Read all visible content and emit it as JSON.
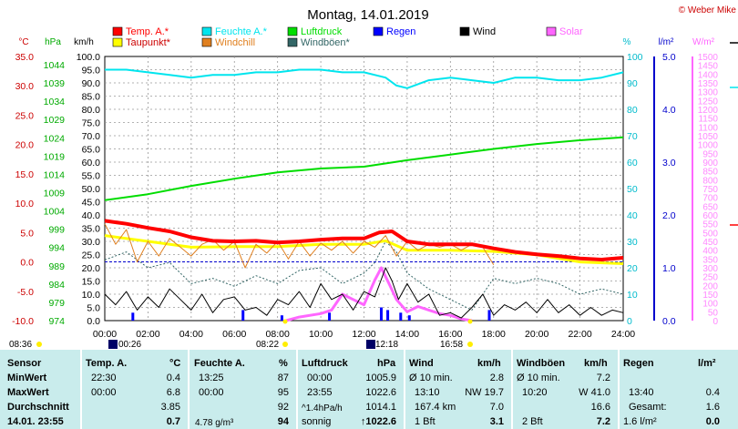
{
  "header": {
    "title": "Montag, 14.01.2019",
    "copyright": "© Weber Mike"
  },
  "colors": {
    "temp": "#ff0000",
    "humidity": "#00e5ee",
    "pressure": "#00dd00",
    "dewpoint": "#ffff00",
    "windchill": "#e08020",
    "gust": "#336666",
    "rain": "#0000ff",
    "wind": "#000000",
    "solar": "#ff66ff",
    "grid": "#000000",
    "table_bg": "#c9ecec"
  },
  "legend": [
    {
      "label": "Temp. A.*",
      "color": "#ff0000"
    },
    {
      "label": "Feuchte A.*",
      "color": "#00e5ee"
    },
    {
      "label": "Luftdruck",
      "color": "#00dd00"
    },
    {
      "label": "Regen",
      "color": "#0000ff"
    },
    {
      "label": "Wind",
      "color": "#000000"
    },
    {
      "label": "Solar",
      "color": "#ff66ff"
    },
    {
      "label": "Taupunkt*",
      "color": "#ffff00"
    },
    {
      "label": "Windchill",
      "color": "#e08020"
    },
    {
      "label": "Windböen*",
      "color": "#336666"
    }
  ],
  "axes": {
    "temp_unit": "°C",
    "hpa_unit": "hPa",
    "kmh_unit": "km/h",
    "pct_unit": "%",
    "rain_unit": "l/m²",
    "solar_unit": "W/m²",
    "temp_ticks": [
      "35.0",
      "30.0",
      "25.0",
      "20.0",
      "15.0",
      "10.0",
      "5.0",
      "0.0",
      "-5.0",
      "-10.0"
    ],
    "hpa_ticks": [
      "1044",
      "1039",
      "1034",
      "1029",
      "1024",
      "1019",
      "1014",
      "1009",
      "1004",
      "999",
      "994",
      "989",
      "984",
      "979",
      "974"
    ],
    "kmh_ticks": [
      "100.0",
      "95.0",
      "90.0",
      "85.0",
      "80.0",
      "75.0",
      "70.0",
      "65.0",
      "60.0",
      "55.0",
      "50.0",
      "45.0",
      "40.0",
      "35.0",
      "30.0",
      "25.0",
      "20.0",
      "15.0",
      "10.0",
      "5.0",
      "0.0"
    ],
    "pct_ticks": [
      "100",
      "90",
      "80",
      "70",
      "60",
      "50",
      "40",
      "30",
      "20",
      "10",
      "0"
    ],
    "rain_ticks": [
      "5.0",
      "4.0",
      "3.0",
      "2.0",
      "1.0",
      "0.0"
    ],
    "solar_ticks": [
      "1500",
      "1450",
      "1400",
      "1350",
      "1300",
      "1250",
      "1200",
      "1150",
      "1100",
      "1050",
      "1000",
      "950",
      "900",
      "850",
      "800",
      "750",
      "700",
      "650",
      "600",
      "550",
      "500",
      "450",
      "400",
      "350",
      "300",
      "250",
      "200",
      "150",
      "100",
      "50",
      "0"
    ],
    "x_ticks": [
      "00:00",
      "02:00",
      "04:00",
      "06:00",
      "08:00",
      "10:00",
      "12:00",
      "14:00",
      "16:00",
      "18:00",
      "20:00",
      "22:00",
      "24:00"
    ]
  },
  "sun": {
    "sunrise": "08:22",
    "sunset": "16:58",
    "dawn": "08:36",
    "moonrise": "00:26",
    "moonset": "12:18"
  },
  "chart_data": {
    "type": "line",
    "x_unit": "hours",
    "series": [
      {
        "name": "Temp. A.*",
        "axis": "temp",
        "x": [
          0,
          1,
          2,
          3,
          4,
          5,
          6,
          7,
          8,
          9,
          10,
          11,
          12,
          12.7,
          13.3,
          14,
          15,
          16,
          17,
          18,
          19,
          20,
          21,
          22,
          23,
          24
        ],
        "values": [
          7.0,
          6.5,
          5.8,
          5.2,
          4.2,
          3.6,
          3.5,
          3.6,
          3.3,
          3.5,
          3.8,
          4.0,
          4.0,
          5.0,
          5.2,
          3.5,
          3.0,
          3.0,
          3.0,
          2.3,
          1.7,
          1.3,
          1.0,
          0.6,
          0.4,
          0.7
        ]
      },
      {
        "name": "Feuchte A.*",
        "axis": "pct",
        "x": [
          0,
          1,
          2,
          3,
          4,
          5,
          6,
          7,
          8,
          9,
          10,
          11,
          12,
          13,
          13.5,
          14,
          15,
          16,
          17,
          18,
          19,
          20,
          21,
          22,
          23,
          24
        ],
        "values": [
          95,
          95,
          94,
          93,
          92,
          93,
          93,
          94,
          94,
          95,
          95,
          94,
          94,
          92,
          89,
          88,
          91,
          92,
          91,
          90,
          92,
          92,
          91,
          91,
          92,
          94
        ]
      },
      {
        "name": "Luftdruck",
        "axis": "hpa",
        "x": [
          0,
          2,
          4,
          6,
          8,
          10,
          12,
          14,
          16,
          18,
          20,
          22,
          24
        ],
        "values": [
          1005.9,
          1007.5,
          1009.7,
          1011.6,
          1013.3,
          1014.3,
          1014.8,
          1016.5,
          1018.0,
          1019.5,
          1020.8,
          1021.8,
          1022.6
        ]
      },
      {
        "name": "Taupunkt*",
        "axis": "temp",
        "x": [
          0,
          2,
          4,
          6,
          8,
          10,
          12,
          13,
          14,
          16,
          18,
          20,
          22,
          24
        ],
        "values": [
          4.5,
          3.5,
          2.5,
          2.6,
          2.6,
          3.0,
          3.0,
          3.6,
          2.0,
          2.0,
          1.8,
          1.2,
          0.0,
          -0.3
        ]
      },
      {
        "name": "Windchill",
        "axis": "temp",
        "x": [
          0,
          0.5,
          1,
          1.5,
          2,
          2.5,
          3,
          3.5,
          4,
          4.5,
          5,
          5.5,
          6,
          6.5,
          7,
          7.5,
          8,
          8.5,
          9,
          9.5,
          10,
          10.5,
          11,
          11.5,
          12,
          12.5,
          13,
          13.5,
          14,
          14.5,
          15,
          15.5,
          16,
          16.5,
          17,
          17.5,
          18
        ],
        "values": [
          6.5,
          3.0,
          5.5,
          0.0,
          3.5,
          1.0,
          4.0,
          2.5,
          1.0,
          3.0,
          3.8,
          2.0,
          3.5,
          -1.0,
          3.0,
          1.5,
          3.5,
          0.5,
          3.5,
          1.0,
          3.2,
          2.0,
          3.5,
          1.5,
          3.5,
          2.5,
          4.5,
          1.0,
          3.5,
          2.0,
          3.0,
          2.5,
          3.0,
          2.0,
          3.0,
          2.5,
          -0.5
        ]
      },
      {
        "name": "Windböen*",
        "axis": "kmh",
        "x": [
          0,
          1,
          2,
          3,
          4,
          5,
          6,
          7,
          8,
          9,
          10,
          11,
          12,
          12.5,
          13,
          13.5,
          14,
          15,
          16,
          17,
          18,
          19,
          20,
          21,
          22,
          23,
          24
        ],
        "values": [
          23,
          26,
          20,
          22,
          14,
          16,
          13,
          17,
          14,
          19,
          20,
          14,
          18,
          22,
          30,
          26,
          18,
          12,
          8,
          4,
          16,
          14,
          16,
          14,
          10,
          12,
          10
        ]
      },
      {
        "name": "Wind",
        "axis": "kmh",
        "x": [
          0,
          0.5,
          1,
          1.5,
          2,
          2.5,
          3,
          3.5,
          4,
          4.5,
          5,
          5.5,
          6,
          6.5,
          7,
          7.5,
          8,
          8.5,
          9,
          9.5,
          10,
          10.5,
          11,
          11.5,
          12,
          12.5,
          13,
          13.3,
          13.6,
          14,
          14.5,
          15,
          15.5,
          16,
          16.5,
          17,
          17.5,
          18,
          18.5,
          19,
          19.5,
          20,
          20.5,
          21,
          21.5,
          22,
          22.5,
          23,
          23.5,
          24
        ],
        "values": [
          10,
          6,
          11,
          4,
          9,
          5,
          12,
          8,
          4,
          10,
          3,
          8,
          9,
          4,
          5,
          2,
          8,
          6,
          11,
          5,
          14,
          8,
          10,
          4,
          11,
          9,
          20,
          15,
          8,
          14,
          7,
          10,
          2,
          3,
          1,
          5,
          10,
          2,
          6,
          4,
          7,
          3,
          8,
          3,
          6,
          2,
          5,
          2,
          4,
          3
        ]
      },
      {
        "name": "Solar",
        "axis": "solar",
        "x": [
          8.4,
          9,
          10,
          10.5,
          11,
          11.5,
          12,
          12.5,
          12.8,
          13,
          13.2,
          13.5,
          14,
          14.5,
          15,
          15.5,
          16,
          16.5,
          17
        ],
        "values": [
          0,
          20,
          40,
          60,
          150,
          120,
          90,
          230,
          300,
          250,
          200,
          120,
          50,
          80,
          60,
          40,
          30,
          10,
          0
        ]
      },
      {
        "name": "Regen",
        "axis": "rain",
        "type": "bar",
        "x": [
          1.3,
          6.4,
          8.2,
          10.4,
          12.8,
          13.1,
          13.7,
          14.1,
          17.8
        ],
        "values": [
          0.15,
          0.2,
          0.1,
          0.15,
          0.25,
          0.2,
          0.15,
          0.1,
          0.2
        ]
      }
    ],
    "ylim": {
      "temp": [
        -10,
        35
      ],
      "hpa": [
        974,
        1044
      ],
      "kmh": [
        0,
        100
      ],
      "pct": [
        0,
        100
      ],
      "rain": [
        0,
        5
      ],
      "solar": [
        0,
        1500
      ]
    }
  },
  "table": {
    "sensor": {
      "header": "Sensor",
      "min": "MinWert",
      "max": "MaxWert",
      "avg": "Durchschnitt",
      "date": "14.01. 23:55"
    },
    "temp": {
      "header": "Temp. A.",
      "unit": "°C",
      "min_time": "22:30",
      "min_val": "0.4",
      "max_time": "00:00",
      "max_val": "6.8",
      "avg": "3.85",
      "current": "0.7"
    },
    "hum": {
      "header": "Feuchte A.",
      "unit": "%",
      "min_time": "13:25",
      "min_val": "87",
      "max_time": "00:00",
      "max_val": "95",
      "avg": "92",
      "abs": "4.78 g/m³",
      "current": "94"
    },
    "press": {
      "header": "Luftdruck",
      "unit": "hPa",
      "min_time": "00:00",
      "min_val": "1005.9",
      "max_time": "23:55",
      "max_val": "1022.6",
      "trend": "^1.4hPa/h",
      "avg": "1014.1",
      "weather": "sonnig",
      "current": "↑1022.6"
    },
    "wind": {
      "header": "Wind",
      "unit": "km/h",
      "l1a": "Ø 10 min.",
      "l1b": "2.8",
      "l2a": "13:10",
      "l2b": "NW 19.7",
      "l3a": "167.4 km",
      "l3b": "7.0",
      "l4a": "1 Bft",
      "current": "3.1"
    },
    "gust": {
      "header": "Windböen",
      "unit": "km/h",
      "l1a": "Ø 10 min.",
      "l1b": "7.2",
      "l2a": "10:20",
      "l2b": "W 41.0",
      "l3b": "16.6",
      "l4a": "2 Bft",
      "current": "7.2"
    },
    "rain": {
      "header": "Regen",
      "unit": "l/m²",
      "l2a": "13:40",
      "l2b": "0.4",
      "l3a": "Gesamt:",
      "l3b": "1.6",
      "l4a": "1.6 l/m²",
      "current": "0.0"
    }
  }
}
